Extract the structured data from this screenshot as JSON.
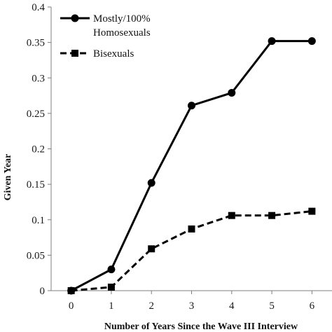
{
  "chart_data": {
    "type": "line",
    "title": "",
    "xlabel": "Number of Years Since the Wave III Interview",
    "ylabel": "Given Year",
    "x": [
      0,
      1,
      2,
      3,
      4,
      5,
      6
    ],
    "xlim": [
      -0.5,
      6.5
    ],
    "ylim": [
      0,
      0.4
    ],
    "yticks": [
      "0",
      "0.05",
      "0.1",
      "0.15",
      "0.2",
      "0.25",
      "0.3",
      "0.35",
      "0.4"
    ],
    "xticks": [
      "0",
      "1",
      "2",
      "3",
      "4",
      "5",
      "6"
    ],
    "grid": false,
    "legend_position": "top-left",
    "series": [
      {
        "name_lines": [
          "Mostly/100%",
          "Homosexuals"
        ],
        "values": [
          0,
          0.03,
          0.152,
          0.261,
          0.279,
          0.352,
          0.352
        ],
        "line_style": "solid",
        "marker": "circle",
        "color": "#000000"
      },
      {
        "name_lines": [
          "Bisexuals"
        ],
        "values": [
          0,
          0.005,
          0.059,
          0.087,
          0.106,
          0.106,
          0.112
        ],
        "line_style": "dashed",
        "marker": "square",
        "color": "#000000"
      }
    ]
  }
}
